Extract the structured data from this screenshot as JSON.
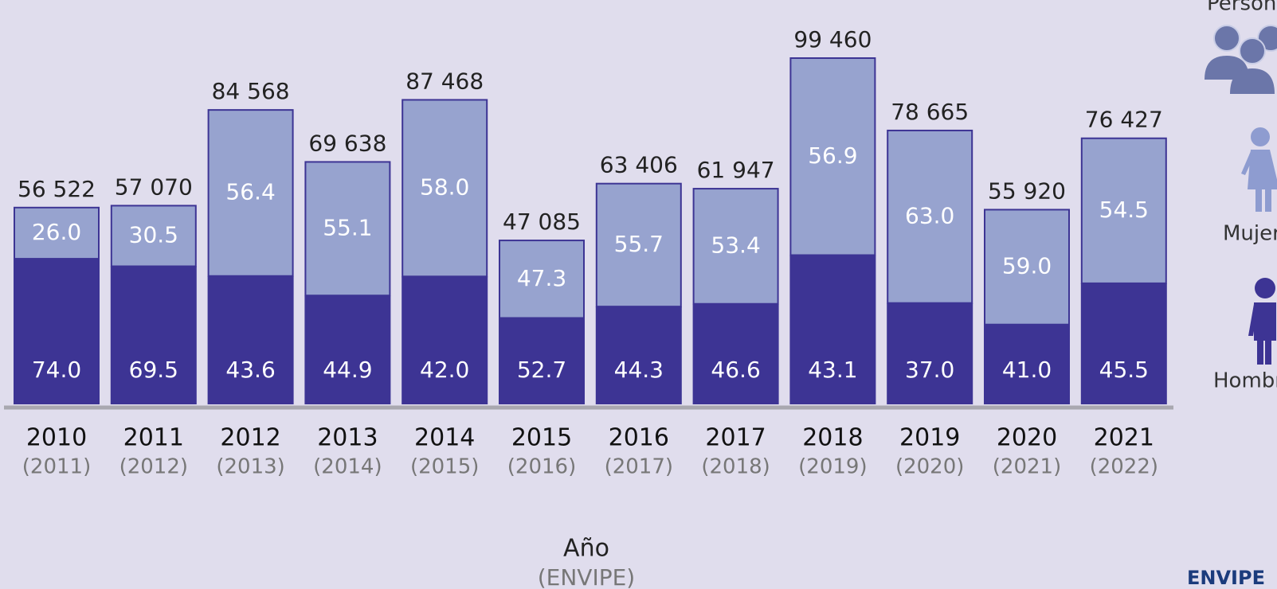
{
  "chart_data": {
    "type": "bar",
    "x_label": "Año",
    "x_sublabel": "(ENVIPE)",
    "categories": [
      "2010",
      "2011",
      "2012",
      "2013",
      "2014",
      "2015",
      "2016",
      "2017",
      "2018",
      "2019",
      "2020",
      "2021"
    ],
    "sub_categories": [
      "(2011)",
      "(2012)",
      "(2013)",
      "(2014)",
      "(2015)",
      "(2016)",
      "(2017)",
      "(2018)",
      "(2019)",
      "(2020)",
      "(2021)",
      "(2022)"
    ],
    "totals": {
      "name": "Personas",
      "color": "#3d3494",
      "values": [
        56522,
        57070,
        84568,
        69638,
        87468,
        47085,
        63406,
        61947,
        99460,
        78665,
        55920,
        76427
      ],
      "value_labels": [
        "56 522",
        "57 070",
        "84 568",
        "69 638",
        "87 468",
        "47 085",
        "63 406",
        "61 947",
        "99 460",
        "78 665",
        "55 920",
        "76 427"
      ]
    },
    "series": [
      {
        "name": "Hombres",
        "color": "#3d3494",
        "values": [
          74.0,
          69.5,
          43.6,
          44.9,
          42.0,
          52.7,
          44.3,
          46.6,
          43.1,
          37.0,
          41.0,
          45.5
        ],
        "value_labels": [
          "74.0",
          "69.5",
          "43.6",
          "44.9",
          "42.0",
          "52.7",
          "44.3",
          "46.6",
          "43.1",
          "37.0",
          "41.0",
          "45.5"
        ]
      },
      {
        "name": "Mujeres",
        "color": "#97a3cf",
        "values": [
          26.0,
          30.5,
          56.4,
          55.1,
          58.0,
          47.3,
          55.7,
          53.4,
          56.9,
          63.0,
          59.0,
          54.5
        ],
        "value_labels": [
          "26.0",
          "30.5",
          "56.4",
          "55.1",
          "58.0",
          "47.3",
          "55.7",
          "53.4",
          "56.9",
          "63.0",
          "59.0",
          "54.5"
        ]
      }
    ],
    "logo": "ENVIPE"
  }
}
